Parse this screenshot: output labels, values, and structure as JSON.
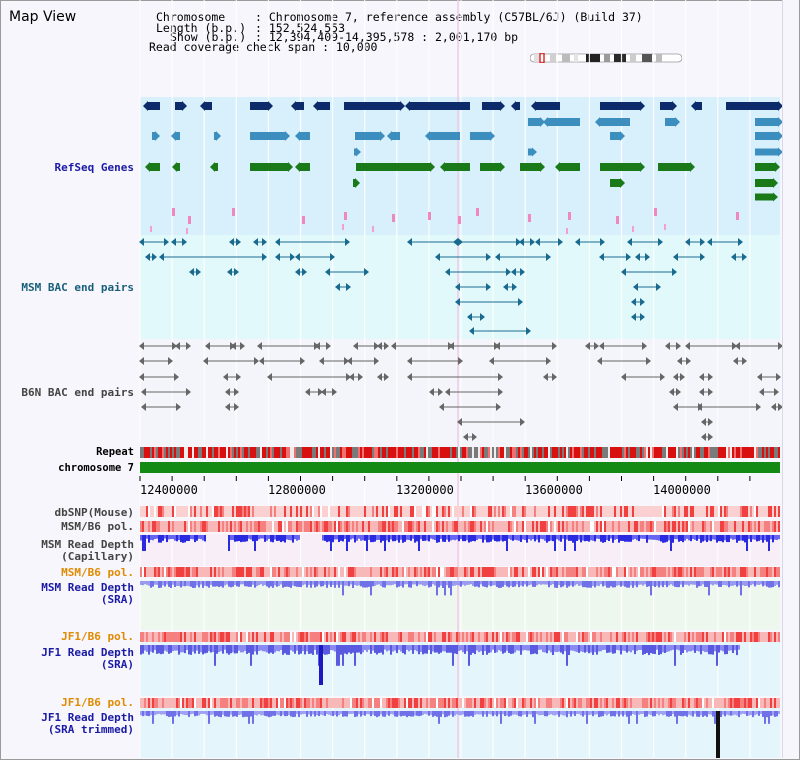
{
  "title": "Map View",
  "info": {
    "chromosome_key": "Chromosome",
    "chromosome_val": ": Chromosome 7, reference assembly (C57BL/6J) (Build 37)",
    "length_key": "Length (b.p.)",
    "length_val": ": 152,524,553",
    "show_key": "Show (b.p.)",
    "show_val": ": 12,394,409-14,395,578 : 2,001,170 bp",
    "coverage": "Read coverage check span : 10,000"
  },
  "tracks": {
    "refseq": "RefSeq Genes",
    "msm_bac": "MSM BAC end pairs",
    "b6n_bac": "B6N BAC end pairs",
    "repeat": "Repeat",
    "chromosome": "chromosome 7",
    "dbsnp": "dbSNP(Mouse)",
    "msm_b6_pol": "MSM/B6 pol.",
    "msm_depth_cap_1": "MSM Read Depth",
    "msm_depth_cap_2": "(Capillary)",
    "msm_b6_pol2": "MSM/B6 pol.",
    "msm_depth_sra_1": "MSM Read Depth",
    "msm_depth_sra_2": "(SRA)",
    "jf1_b6_pol": "JF1/B6 pol.",
    "jf1_depth_sra_1": "JF1 Read Depth",
    "jf1_depth_sra_2": "(SRA)",
    "jf1_b6_pol2": "JF1/B6 pol.",
    "jf1_depth_trim_1": "JF1 Read Depth",
    "jf1_depth_trim_2": "(SRA trimmed)"
  },
  "axis_ticks": [
    "12400000",
    "12800000",
    "13200000",
    "13600000",
    "14000000"
  ],
  "colors": {
    "refseq_label": "#1a1aa6",
    "msm_bac_label": "#1a5f7a",
    "b6n_label": "#444444",
    "pol_orange": "#e08a00",
    "depth_blue": "#1a1aa6",
    "gene_dark": "#0d2a6b",
    "gene_mid": "#3c8ebf",
    "gene_green": "#1a7a1a",
    "chrom_green": "#138a13",
    "repeat_red": "#d81010"
  }
}
